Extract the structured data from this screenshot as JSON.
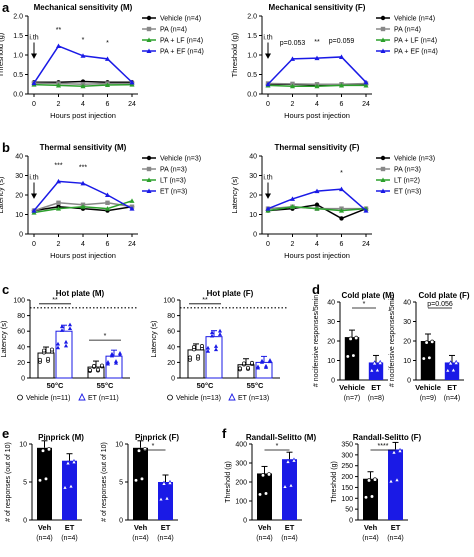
{
  "panels": {
    "a": "a",
    "b": "b",
    "c": "c",
    "d": "d",
    "e": "e",
    "f": "f"
  },
  "chart_data": [
    {
      "id": "a-m",
      "type": "line",
      "title": "Mechanical sensitivity (M)",
      "xlabel": "Hours post injection",
      "ylabel": "Threshold (g)",
      "x": [
        "0",
        "2",
        "4",
        "6",
        "24"
      ],
      "ylim": [
        0,
        2
      ],
      "yticks": [
        "0.0",
        "0.5",
        "1.0",
        "1.5",
        "2.0"
      ],
      "arrow_label": "i.th",
      "series": [
        {
          "name": "Vehicle (n=4)",
          "color": "#000000",
          "marker": "circle",
          "values": [
            0.3,
            0.3,
            0.32,
            0.3,
            0.3
          ]
        },
        {
          "name": "PA (n=4)",
          "color": "#888888",
          "marker": "square",
          "values": [
            0.28,
            0.27,
            0.25,
            0.27,
            0.27
          ]
        },
        {
          "name": "PA + LF (n=4)",
          "color": "#2ca02c",
          "marker": "triangle",
          "values": [
            0.24,
            0.22,
            0.2,
            0.23,
            0.24
          ]
        },
        {
          "name": "PA + EF (n=4)",
          "color": "#1a1ae6",
          "marker": "triangle",
          "values": [
            0.28,
            1.23,
            0.98,
            0.9,
            0.3
          ]
        }
      ],
      "annotations": [
        {
          "x": "2",
          "text": "**"
        },
        {
          "x": "4",
          "text": "*"
        },
        {
          "x": "6",
          "text": "*"
        }
      ]
    },
    {
      "id": "a-f",
      "type": "line",
      "title": "Mechanical sensitivity (F)",
      "xlabel": "Hours post injection",
      "ylabel": "Threshold (g)",
      "x": [
        "0",
        "2",
        "4",
        "6",
        "24"
      ],
      "ylim": [
        0,
        2
      ],
      "yticks": [
        "0.0",
        "0.5",
        "1.0",
        "1.5",
        "2.0"
      ],
      "arrow_label": "i.th",
      "series": [
        {
          "name": "Vehicle (n=4)",
          "color": "#000000",
          "marker": "circle",
          "values": [
            0.25,
            0.25,
            0.23,
            0.25,
            0.25
          ]
        },
        {
          "name": "PA (n=4)",
          "color": "#888888",
          "marker": "square",
          "values": [
            0.27,
            0.26,
            0.25,
            0.25,
            0.27
          ]
        },
        {
          "name": "PA + LF (n=4)",
          "color": "#2ca02c",
          "marker": "triangle",
          "values": [
            0.22,
            0.2,
            0.2,
            0.22,
            0.22
          ]
        },
        {
          "name": "PA + EF (n=4)",
          "color": "#1a1ae6",
          "marker": "triangle",
          "values": [
            0.25,
            0.9,
            0.92,
            0.95,
            0.3
          ]
        }
      ],
      "annotations": [
        {
          "x": "2",
          "text": "p=0.053"
        },
        {
          "x": "4",
          "text": "**"
        },
        {
          "x": "6",
          "text": "p=0.059"
        }
      ]
    },
    {
      "id": "b-m",
      "type": "line",
      "title": "Thermal sensitivity (M)",
      "xlabel": "Hours post injection",
      "ylabel": "Latency (s)",
      "x": [
        "0",
        "2",
        "4",
        "6",
        "24"
      ],
      "ylim": [
        0,
        40
      ],
      "yticks": [
        "0",
        "10",
        "20",
        "30",
        "40"
      ],
      "arrow_label": "i.th",
      "series": [
        {
          "name": "Vehicle (n=3)",
          "color": "#000000",
          "marker": "circle",
          "values": [
            12,
            14,
            13,
            12,
            14
          ]
        },
        {
          "name": "PA (n=3)",
          "color": "#888888",
          "marker": "square",
          "values": [
            12,
            16,
            15,
            16,
            14
          ]
        },
        {
          "name": "LT (n=3)",
          "color": "#2ca02c",
          "marker": "triangle",
          "values": [
            11,
            13,
            14,
            13,
            17
          ]
        },
        {
          "name": "ET (n=3)",
          "color": "#1a1ae6",
          "marker": "triangle",
          "values": [
            12,
            27,
            26,
            20,
            13
          ]
        }
      ],
      "annotations": [
        {
          "x": "2",
          "text": "***"
        },
        {
          "x": "4",
          "text": "***"
        }
      ]
    },
    {
      "id": "b-f",
      "type": "line",
      "title": "Thermal sensitivity (F)",
      "xlabel": "Hours post injection",
      "ylabel": "Latency (s)",
      "x": [
        "0",
        "2",
        "4",
        "6",
        "24"
      ],
      "ylim": [
        0,
        40
      ],
      "yticks": [
        "0",
        "10",
        "20",
        "30",
        "40"
      ],
      "arrow_label": "i.th",
      "series": [
        {
          "name": "Vehicle (n=3)",
          "color": "#000000",
          "marker": "circle",
          "values": [
            12,
            13,
            15,
            8,
            13
          ]
        },
        {
          "name": "PA (n=3)",
          "color": "#888888",
          "marker": "square",
          "values": [
            13,
            14,
            13,
            13,
            13
          ]
        },
        {
          "name": "LT (n=2)",
          "color": "#2ca02c",
          "marker": "triangle",
          "values": [
            12,
            14,
            13,
            12,
            13
          ]
        },
        {
          "name": "ET (n=3)",
          "color": "#1a1ae6",
          "marker": "triangle",
          "values": [
            13,
            18,
            22,
            23,
            12
          ]
        }
      ],
      "annotations": [
        {
          "x": "6",
          "text": "*"
        }
      ]
    },
    {
      "id": "c-m",
      "type": "bar",
      "title": "Hot plate (M)",
      "ylabel": "Latency (s)",
      "categories": [
        "50°C",
        "55°C"
      ],
      "ylim": [
        0,
        100
      ],
      "yticks": [
        "0",
        "20",
        "40",
        "60",
        "80",
        "100"
      ],
      "cutoff": 90,
      "series": [
        {
          "name": "Vehicle (n=11)",
          "color": "#ffffff",
          "values": [
            32,
            14
          ]
        },
        {
          "name": "ET (n=11)",
          "color": "#1a1ae6",
          "values": [
            60,
            28
          ]
        }
      ],
      "annotations": [
        {
          "x": "50°C",
          "text": "**"
        },
        {
          "x": "55°C",
          "text": "*"
        }
      ]
    },
    {
      "id": "c-f",
      "type": "bar",
      "title": "Hot plate (F)",
      "ylabel": "Latency (s)",
      "categories": [
        "50°C",
        "55°C"
      ],
      "ylim": [
        0,
        100
      ],
      "yticks": [
        "0",
        "20",
        "40",
        "60",
        "80",
        "100"
      ],
      "cutoff": 90,
      "series": [
        {
          "name": "Vehicle (n=13)",
          "color": "#ffffff",
          "values": [
            36,
            17
          ]
        },
        {
          "name": "ET (n=13)",
          "color": "#1a1ae6",
          "values": [
            53,
            20
          ]
        }
      ],
      "annotations": [
        {
          "x": "50°C",
          "text": "**"
        }
      ]
    },
    {
      "id": "d-m",
      "type": "bar",
      "title": "Cold plate (M)",
      "ylabel": "# nocifensive responses/5min",
      "categories": [
        "Vehicle",
        "ET"
      ],
      "sublabels": [
        "(n=7)",
        "(n=8)"
      ],
      "ylim": [
        0,
        40
      ],
      "yticks": [
        "0",
        "10",
        "20",
        "30",
        "40"
      ],
      "values": [
        22,
        9
      ],
      "colors": [
        "#000000",
        "#1a1ae6"
      ],
      "annotations": [
        {
          "text": "*"
        }
      ]
    },
    {
      "id": "d-f",
      "type": "bar",
      "title": "Cold plate (F)",
      "ylabel": "# nocifensive responses/5min",
      "categories": [
        "Vehicle",
        "ET"
      ],
      "sublabels": [
        "(n=9)",
        "(n=4)"
      ],
      "ylim": [
        0,
        40
      ],
      "yticks": [
        "0",
        "10",
        "20",
        "30",
        "40"
      ],
      "values": [
        20,
        9
      ],
      "colors": [
        "#000000",
        "#1a1ae6"
      ],
      "annotations": [
        {
          "text": "p=0.056"
        }
      ]
    },
    {
      "id": "e-m",
      "type": "bar",
      "title": "Pinprick (M)",
      "ylabel": "# of responses (out of 10)",
      "categories": [
        "Veh",
        "ET"
      ],
      "sublabels": [
        "(n=4)",
        "(n=4)"
      ],
      "ylim": [
        0,
        10
      ],
      "yticks": [
        "0",
        "5",
        "10"
      ],
      "values": [
        9.5,
        7.8
      ],
      "colors": [
        "#000000",
        "#1a1ae6"
      ]
    },
    {
      "id": "e-f",
      "type": "bar",
      "title": "Pinprick (F)",
      "ylabel": "# of responses (out of 10)",
      "categories": [
        "Veh",
        "ET"
      ],
      "sublabels": [
        "(n=4)",
        "(n=4)"
      ],
      "ylim": [
        0,
        10
      ],
      "yticks": [
        "0",
        "5",
        "10"
      ],
      "values": [
        9.5,
        5.0
      ],
      "colors": [
        "#000000",
        "#1a1ae6"
      ],
      "annotations": [
        {
          "text": "*"
        }
      ]
    },
    {
      "id": "f-m",
      "type": "bar",
      "title": "Randall-Selitto (M)",
      "ylabel": "Threshold (g)",
      "categories": [
        "Veh",
        "ET"
      ],
      "sublabels": [
        "(n=4)",
        "(n=4)"
      ],
      "ylim": [
        0,
        400
      ],
      "yticks": [
        "0",
        "100",
        "200",
        "300",
        "400"
      ],
      "values": [
        245,
        320
      ],
      "colors": [
        "#000000",
        "#1a1ae6"
      ],
      "annotations": [
        {
          "text": "*"
        }
      ]
    },
    {
      "id": "f-f",
      "type": "bar",
      "title": "Randall-Selitto (F)",
      "ylabel": "Threshold (g)",
      "categories": [
        "Veh",
        "ET"
      ],
      "sublabels": [
        "(n=4)",
        "(n=4)"
      ],
      "ylim": [
        0,
        350
      ],
      "yticks": [
        "0",
        "50",
        "100",
        "150",
        "200",
        "250",
        "300",
        "350"
      ],
      "values": [
        190,
        325
      ],
      "colors": [
        "#000000",
        "#1a1ae6"
      ],
      "annotations": [
        {
          "text": "****"
        }
      ]
    }
  ]
}
